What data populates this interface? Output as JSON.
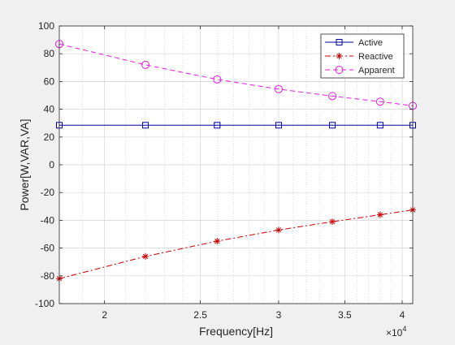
{
  "chart_data": {
    "type": "line",
    "xlabel": "Frequency[Hz]",
    "ylabel": "Power[W,VAR,VA]",
    "x_scale": "log",
    "x_exponent_label": "×10",
    "x_exponent": "4",
    "xlim": [
      18000,
      41000
    ],
    "ylim": [
      -100,
      100
    ],
    "x_ticks": [
      20000,
      25000,
      30000,
      35000,
      40000
    ],
    "x_tick_labels": [
      "2",
      "2.5",
      "3",
      "3.5",
      "4"
    ],
    "y_ticks": [
      -100,
      -80,
      -60,
      -40,
      -20,
      0,
      20,
      40,
      60,
      80,
      100
    ],
    "y_tick_labels": [
      "-100",
      "-80",
      "-60",
      "-40",
      "-20",
      "0",
      "20",
      "40",
      "60",
      "80",
      "100"
    ],
    "grid": true,
    "minor_grid": true,
    "legend_position": "top-right",
    "x": [
      18000,
      22000,
      26000,
      30000,
      34000,
      38000,
      41000
    ],
    "series": [
      {
        "name": "Active",
        "color": "#0000a0",
        "linestyle": "solid",
        "marker": "square",
        "values": [
          28.5,
          28.5,
          28.5,
          28.5,
          28.5,
          28.5,
          28.5
        ]
      },
      {
        "name": "Reactive",
        "color": "#cc0000",
        "linestyle": "dashdot",
        "marker": "asterisk",
        "values": [
          -82,
          -66,
          -55,
          -47,
          -41,
          -36,
          -32.5
        ]
      },
      {
        "name": "Apparent",
        "color": "#e619e6",
        "linestyle": "dashed",
        "marker": "circle",
        "values": [
          87,
          72,
          61.5,
          54.5,
          49.5,
          45.5,
          42.5
        ]
      }
    ]
  }
}
